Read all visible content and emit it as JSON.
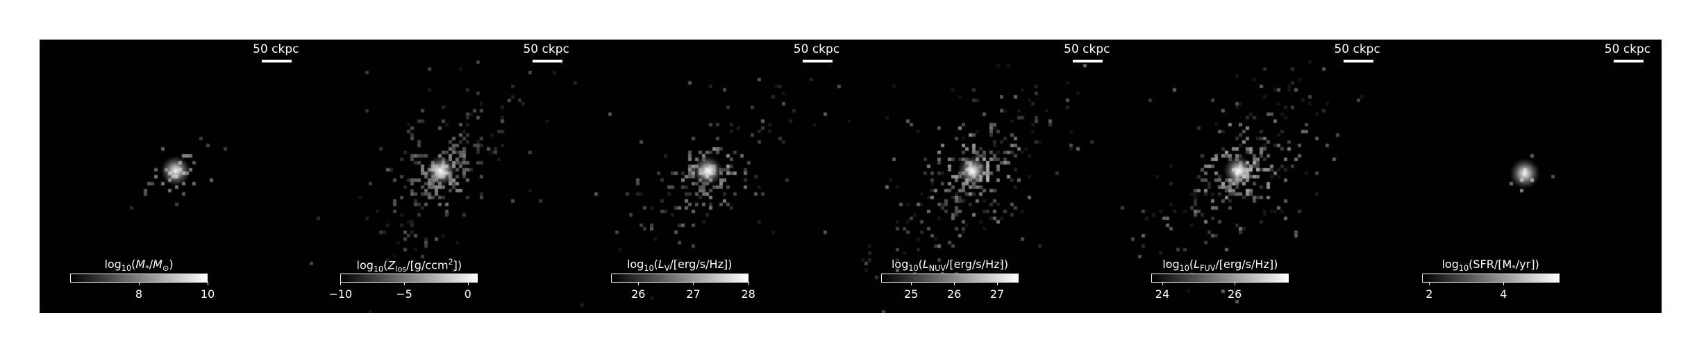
{
  "panels": [
    {
      "scale_label": "50 ckpc",
      "colorbar": {
        "title": "log<sub>10</sub>(<i>M</i><sub>*</sub>/<i>M</i><sub>⊙</sub>)",
        "ticks": [
          "8",
          "10"
        ],
        "range": [
          6.0,
          10.0
        ]
      },
      "tick_values": [
        8,
        10
      ]
    },
    {
      "scale_label": "50 ckpc",
      "colorbar": {
        "title": "log<sub>10</sub>(<i>Z</i><sub>los</sub>/[g/ccm<sup>2</sup>])",
        "ticks": [
          "−10",
          "−5",
          "0"
        ],
        "range": [
          -10.0,
          0.8
        ]
      },
      "tick_values": [
        -10,
        -5,
        0
      ]
    },
    {
      "scale_label": "50 ckpc",
      "colorbar": {
        "title": "log<sub>10</sub>(<i>L</i><sub>V</sub>/[erg/s/Hz])",
        "ticks": [
          "26",
          "27",
          "28"
        ],
        "range": [
          25.5,
          28.0
        ]
      },
      "tick_values": [
        26,
        27,
        28
      ]
    },
    {
      "scale_label": "50 ckpc",
      "colorbar": {
        "title": "log<sub>10</sub>(<i>L</i><sub>NUV</sub>/[erg/s/Hz])",
        "ticks": [
          "25",
          "26",
          "27"
        ],
        "range": [
          24.3,
          27.5
        ]
      },
      "tick_values": [
        25,
        26,
        27
      ]
    },
    {
      "scale_label": "50 ckpc",
      "colorbar": {
        "title": "log<sub>10</sub>(<i>L</i><sub>FUV</sub>/[erg/s/Hz])",
        "ticks": [
          "24",
          "26"
        ],
        "range": [
          23.7,
          27.5
        ]
      },
      "tick_values": [
        24,
        26
      ]
    },
    {
      "scale_label": "50 ckpc",
      "colorbar": {
        "title": "log<sub>10</sub>(SFR/[M<sub>*</sub>/yr])",
        "ticks": [
          "2",
          "4"
        ],
        "range": [
          1.8,
          5.5
        ]
      },
      "tick_values": [
        2,
        4
      ]
    }
  ]
}
